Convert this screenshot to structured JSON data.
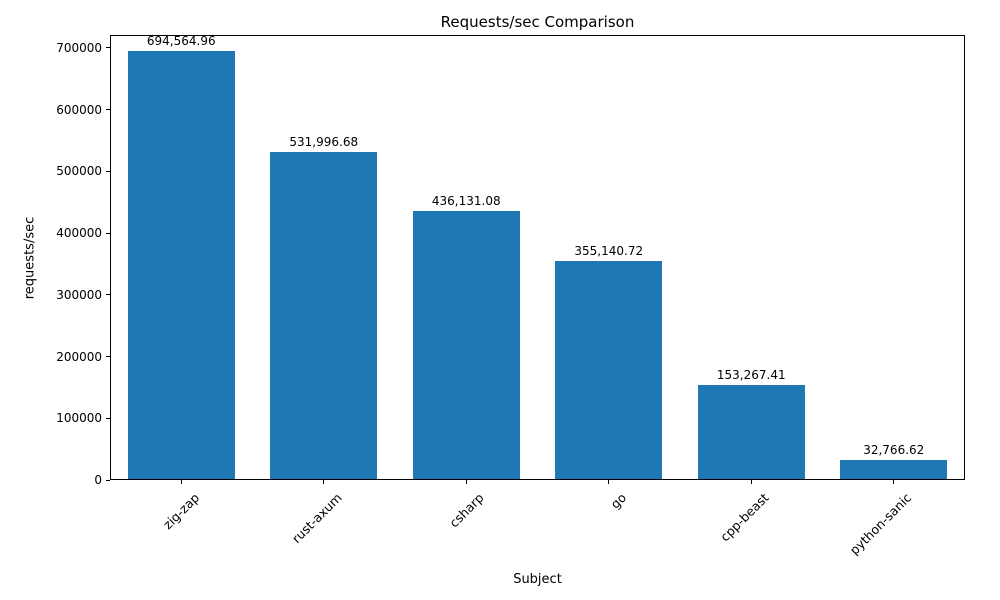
{
  "chart_data": {
    "type": "bar",
    "title": "Requests/sec Comparison",
    "xlabel": "Subject",
    "ylabel": "requests/sec",
    "categories": [
      "zig-zap",
      "rust-axum",
      "csharp",
      "go",
      "cpp-beast",
      "python-sanic"
    ],
    "values": [
      694564.96,
      531996.68,
      436131.08,
      355140.72,
      153267.41,
      32766.62
    ],
    "value_labels": [
      "694,564.96",
      "531,996.68",
      "436,131.08",
      "355,140.72",
      "153,267.41",
      "32,766.62"
    ],
    "yticks": [
      0,
      100000,
      200000,
      300000,
      400000,
      500000,
      600000,
      700000
    ],
    "ylim": [
      0,
      721000
    ],
    "bar_color": "#1f77b4",
    "background_color": "#ffffff",
    "grid": false,
    "legend": "none"
  }
}
